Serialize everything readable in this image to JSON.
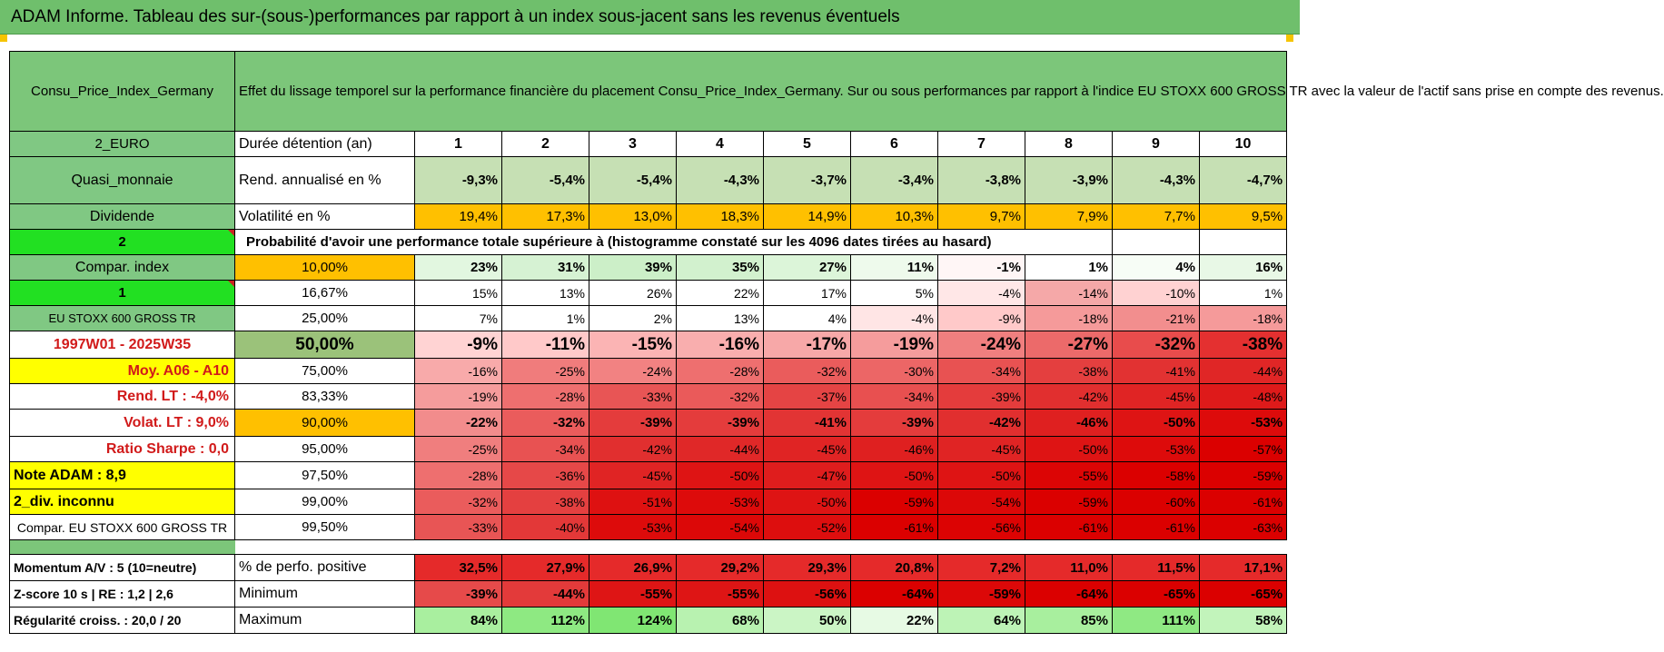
{
  "title": "ADAM Informe. Tableau des sur-(sous-)performances par rapport à un index sous-jacent sans les revenus éventuels",
  "header": {
    "asset_name": "Consu_Price_Index_Germany",
    "description": "Effet du lissage temporel sur la performance financière du placement Consu_Price_Index_Germany. Sur ou sous performances par rapport à l'indice EU STOXX 600 GROSS TR avec la valeur de l'actif sans prise en compte des revenus."
  },
  "duration_row": {
    "left": "2_EURO",
    "label": "Durée détention (an)",
    "years": [
      "1",
      "2",
      "3",
      "4",
      "5",
      "6",
      "7",
      "8",
      "9",
      "10"
    ]
  },
  "rend_row": {
    "left": "Quasi_monnaie",
    "label": "Rend. annualisé en %",
    "values": [
      "-9,3%",
      "-5,4%",
      "-5,4%",
      "-4,3%",
      "-3,7%",
      "-3,4%",
      "-3,8%",
      "-3,9%",
      "-4,3%",
      "-4,7%"
    ],
    "colors": [
      "#c6e0b4",
      "#c6e0b4",
      "#c6e0b4",
      "#c6e0b4",
      "#c6e0b4",
      "#c6e0b4",
      "#c6e0b4",
      "#c6e0b4",
      "#c6e0b4",
      "#c6e0b4"
    ]
  },
  "vol_row": {
    "left": "Dividende",
    "label": "Volatilité en %",
    "values": [
      "19,4%",
      "17,3%",
      "13,0%",
      "18,3%",
      "14,9%",
      "10,3%",
      "9,7%",
      "7,9%",
      "7,7%",
      "9,5%"
    ]
  },
  "prob_row": {
    "left": "2",
    "text": "Probabilité d'avoir une performance totale supérieure à (histogramme constaté sur les 4096 dates tirées au hasard)"
  },
  "percentile_rows": [
    {
      "left": "Compar. index",
      "pct": "10,00%",
      "values": [
        "23%",
        "31%",
        "39%",
        "35%",
        "27%",
        "11%",
        "-1%",
        "1%",
        "4%",
        "16%"
      ],
      "colors": [
        "#e2f7e0",
        "#d6f2d3",
        "#ccefc8",
        "#d2f1ce",
        "#dcf5d9",
        "#eefaec",
        "#fff6f6",
        "#ffffff",
        "#f7fdf6",
        "#e8f8e6"
      ]
    },
    {
      "left": "1",
      "pct": "16,67%",
      "values": [
        "15%",
        "13%",
        "26%",
        "22%",
        "17%",
        "5%",
        "-4%",
        "-14%",
        "-10%",
        "1%"
      ],
      "colors": [
        "#ffffff",
        "#ffffff",
        "#ffffff",
        "#ffffff",
        "#ffffff",
        "#ffffff",
        "#ffe7e7",
        "#f5a8a8",
        "#ffd2d2",
        "#ffffff"
      ]
    },
    {
      "left": "EU STOXX 600 GROSS TR",
      "pct": "25,00%",
      "values": [
        "7%",
        "1%",
        "2%",
        "13%",
        "4%",
        "-4%",
        "-9%",
        "-18%",
        "-21%",
        "-18%"
      ],
      "colors": [
        "#ffffff",
        "#ffffff",
        "#ffffff",
        "#ffffff",
        "#ffffff",
        "#ffe5e5",
        "#ffc9c9",
        "#f59a9a",
        "#f28e8e",
        "#f59a9a"
      ]
    },
    {
      "left": "1997W01 - 2025W35",
      "pct": "50,00%",
      "values": [
        "-9%",
        "-11%",
        "-15%",
        "-16%",
        "-17%",
        "-19%",
        "-24%",
        "-27%",
        "-32%",
        "-38%"
      ],
      "colors": [
        "#ffd3d3",
        "#ffc9c9",
        "#fbb4b4",
        "#f9aeae",
        "#f7a8a8",
        "#f59c9c",
        "#f07f7f",
        "#ec6a6a",
        "#e84c4c",
        "#e43030"
      ]
    },
    {
      "left": "Moy. A06 - A10",
      "pct": "75,00%",
      "values": [
        "-16%",
        "-25%",
        "-24%",
        "-28%",
        "-32%",
        "-30%",
        "-34%",
        "-38%",
        "-41%",
        "-44%"
      ],
      "colors": [
        "#f8aaaa",
        "#f07c7c",
        "#f28282",
        "#ee6f6f",
        "#ea5c5c",
        "#ec6666",
        "#e85252",
        "#e43f3f",
        "#e23232",
        "#e02626"
      ]
    },
    {
      "left": "Rend. LT :   -4,0%",
      "pct": "83,33%",
      "values": [
        "-19%",
        "-28%",
        "-33%",
        "-32%",
        "-37%",
        "-34%",
        "-39%",
        "-42%",
        "-45%",
        "-48%"
      ],
      "colors": [
        "#f59c9c",
        "#ee6f6f",
        "#e85555",
        "#ea5a5a",
        "#e54444",
        "#e85050",
        "#e43c3c",
        "#e12f2f",
        "#e02424",
        "#de1a1a"
      ]
    },
    {
      "left": "Volat. LT :   9,0%",
      "pct": "90,00%",
      "values": [
        "-22%",
        "-32%",
        "-39%",
        "-39%",
        "-41%",
        "-39%",
        "-42%",
        "-46%",
        "-50%",
        "-53%"
      ],
      "colors": [
        "#f28c8c",
        "#ea5c5c",
        "#e43c3c",
        "#e43c3c",
        "#e23434",
        "#e43c3c",
        "#e12f2f",
        "#df2020",
        "#de1414",
        "#dd0b0b"
      ]
    },
    {
      "left": "Ratio Sharpe :   0,0",
      "pct": "95,00%",
      "values": [
        "-25%",
        "-34%",
        "-42%",
        "-44%",
        "-45%",
        "-46%",
        "-45%",
        "-50%",
        "-53%",
        "-57%"
      ],
      "colors": [
        "#f07e7e",
        "#e85252",
        "#e12f2f",
        "#e02828",
        "#e02424",
        "#df2020",
        "#e02424",
        "#de1414",
        "#dd0b0b",
        "#db0000"
      ]
    },
    {
      "left": "Note ADAM : 8,9",
      "pct": "97,50%",
      "values": [
        "-28%",
        "-36%",
        "-45%",
        "-50%",
        "-47%",
        "-50%",
        "-50%",
        "-55%",
        "-58%",
        "-59%"
      ],
      "colors": [
        "#ee6f6f",
        "#e64848",
        "#e02424",
        "#de1414",
        "#df1d1d",
        "#de1414",
        "#de1414",
        "#dc0505",
        "#db0000",
        "#db0000"
      ]
    },
    {
      "left": "2_div. inconnu",
      "pct": "99,00%",
      "values": [
        "-32%",
        "-38%",
        "-51%",
        "-53%",
        "-50%",
        "-59%",
        "-54%",
        "-59%",
        "-60%",
        "-61%"
      ],
      "colors": [
        "#ea5c5c",
        "#e44040",
        "#de1111",
        "#dd0b0b",
        "#de1414",
        "#db0000",
        "#dc0808",
        "#db0000",
        "#db0000",
        "#db0000"
      ]
    },
    {
      "left": "Compar. EU STOXX 600 GROSS TR",
      "pct": "99,50%",
      "values": [
        "-33%",
        "-40%",
        "-53%",
        "-54%",
        "-52%",
        "-61%",
        "-56%",
        "-61%",
        "-61%",
        "-63%"
      ],
      "colors": [
        "#e85555",
        "#e33838",
        "#dd0b0b",
        "#dc0808",
        "#dd0e0e",
        "#db0000",
        "#dc0303",
        "#db0000",
        "#db0000",
        "#db0000"
      ]
    }
  ],
  "stats_rows": [
    {
      "left": "Momentum A/V : 5 (10=neutre)",
      "label": "% de perfo. positive",
      "values": [
        "32,5%",
        "27,9%",
        "26,9%",
        "29,2%",
        "29,3%",
        "20,8%",
        "7,2%",
        "11,0%",
        "11,5%",
        "17,1%"
      ],
      "colors": [
        "#e52a2a",
        "#e52a2a",
        "#e52a2a",
        "#e52a2a",
        "#e52a2a",
        "#e52a2a",
        "#e52a2a",
        "#e52a2a",
        "#e52a2a",
        "#e52a2a"
      ]
    },
    {
      "left": "Z-score 10 s  | RE : 1,2 | 2,6",
      "label": "Minimum",
      "values": [
        "-39%",
        "-44%",
        "-55%",
        "-55%",
        "-56%",
        "-64%",
        "-59%",
        "-64%",
        "-65%",
        "-65%"
      ],
      "colors": [
        "#e64a4a",
        "#e33a3a",
        "#de1515",
        "#de1515",
        "#dd1111",
        "#db0000",
        "#dc0808",
        "#db0000",
        "#db0000",
        "#db0000"
      ]
    },
    {
      "left": "Régularité croiss. : 20,0 / 20",
      "label": "Maximum",
      "values": [
        "84%",
        "112%",
        "124%",
        "68%",
        "50%",
        "22%",
        "64%",
        "85%",
        "111%",
        "58%"
      ],
      "colors": [
        "#a9ef9f",
        "#8ee982",
        "#80e673",
        "#b8f2b0",
        "#cbf5c5",
        "#e7faE4",
        "#bdf3b6",
        "#a8ef9e",
        "#8fe983",
        "#c2f4bb"
      ]
    }
  ],
  "colors": {
    "title_green": "#6fbf6c",
    "label_green": "#80c883",
    "bright_green": "#22e022",
    "yellow": "#ffff00",
    "orange": "#ffc000"
  }
}
